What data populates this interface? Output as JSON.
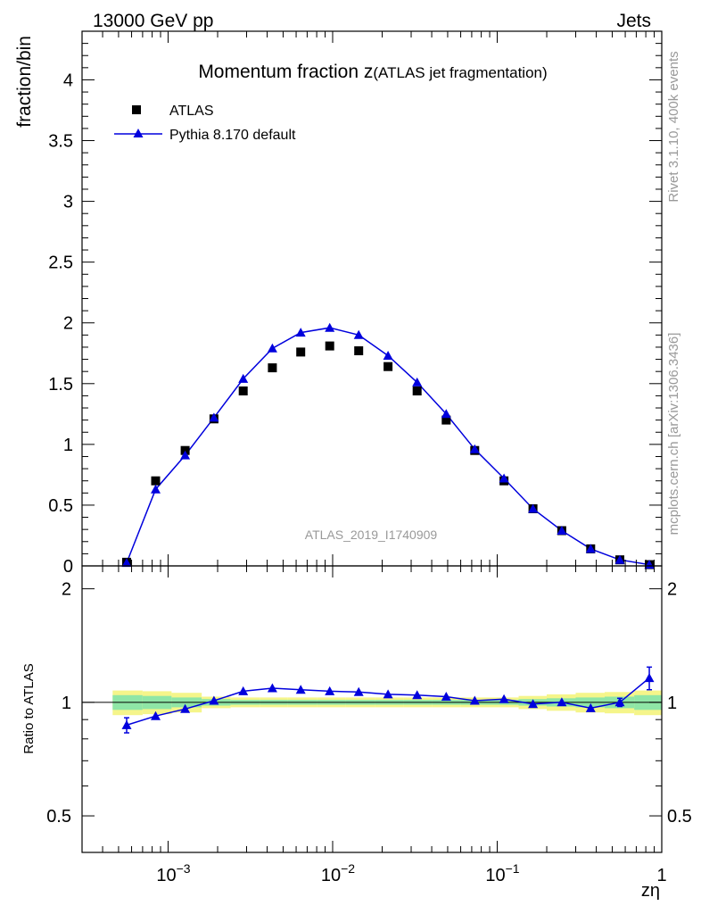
{
  "header": {
    "energy_label": "13000 GeV pp",
    "process_label": "Jets",
    "rivet_label": "Rivet 3.1.10,  400k events",
    "mcplots_label": "mcplots.cern.ch [arXiv:1306.3436]",
    "analysis_label": "ATLAS_2019_I1740909"
  },
  "colors": {
    "mc": "#0000dd",
    "data": "#000000",
    "band_inner": "#8fe6a6",
    "band_outer": "#f5f58a",
    "watermark": "#999999"
  },
  "chart_data": [
    {
      "type": "scatter",
      "title_main": "Momentum fraction z",
      "title_sub": "(ATLAS jet fragmentation)",
      "ylabel": "fraction/bin",
      "xscale": "log",
      "xlim": [
        0.0003,
        1
      ],
      "ylim": [
        0,
        4.4
      ],
      "yticks": [
        0,
        0.5,
        1,
        1.5,
        2,
        2.5,
        3,
        3.5,
        4
      ],
      "ytick_labels": [
        "0",
        "0.5",
        "1",
        "1.5",
        "2",
        "2.5",
        "3",
        "3.5",
        "4"
      ],
      "legend_position": "top-left",
      "series": [
        {
          "name": "ATLAS",
          "marker": "square",
          "x": [
            0.00056,
            0.00084,
            0.00127,
            0.0019,
            0.00286,
            0.0043,
            0.0064,
            0.0096,
            0.0144,
            0.0217,
            0.0326,
            0.049,
            0.073,
            0.11,
            0.165,
            0.247,
            0.37,
            0.556,
            0.84
          ],
          "y": [
            0.03,
            0.7,
            0.95,
            1.21,
            1.44,
            1.63,
            1.76,
            1.81,
            1.77,
            1.64,
            1.44,
            1.2,
            0.95,
            0.7,
            0.47,
            0.29,
            0.14,
            0.05,
            0.01
          ]
        },
        {
          "name": "Pythia 8.170 default",
          "marker": "triangle",
          "x": [
            0.00056,
            0.00084,
            0.00127,
            0.0019,
            0.00286,
            0.0043,
            0.0064,
            0.0096,
            0.0144,
            0.0217,
            0.0326,
            0.049,
            0.073,
            0.11,
            0.165,
            0.247,
            0.37,
            0.556,
            0.84
          ],
          "y": [
            0.025,
            0.63,
            0.91,
            1.22,
            1.54,
            1.79,
            1.92,
            1.96,
            1.9,
            1.73,
            1.51,
            1.25,
            0.96,
            0.72,
            0.47,
            0.29,
            0.14,
            0.05,
            0.01
          ]
        }
      ]
    },
    {
      "type": "line",
      "ylabel": "Ratio to ATLAS",
      "xlabel": "zη",
      "xscale": "log",
      "xlim": [
        0.0003,
        1
      ],
      "ylim": [
        0.4,
        2.3
      ],
      "yticks": [
        0.5,
        1,
        2
      ],
      "ytick_labels": [
        "0.5",
        "1",
        "2"
      ],
      "xticks": [
        0.001,
        0.01,
        0.1,
        1
      ],
      "xtick_labels": [
        {
          "base": "10",
          "exp": "−3"
        },
        {
          "base": "10",
          "exp": "−2"
        },
        {
          "base": "10",
          "exp": "−1"
        },
        {
          "base": "1",
          "exp": ""
        }
      ],
      "band": {
        "edges": [
          0.00046,
          0.0007,
          0.00105,
          0.0016,
          0.0024,
          0.0036,
          0.0053,
          0.008,
          0.012,
          0.018,
          0.027,
          0.04,
          0.06,
          0.09,
          0.135,
          0.2,
          0.3,
          0.45,
          0.68,
          1.0
        ],
        "inner": [
          0.045,
          0.04,
          0.03,
          0.02,
          0.015,
          0.015,
          0.015,
          0.015,
          0.015,
          0.015,
          0.015,
          0.015,
          0.015,
          0.015,
          0.02,
          0.025,
          0.03,
          0.035,
          0.045
        ],
        "outer": [
          0.075,
          0.07,
          0.06,
          0.035,
          0.03,
          0.03,
          0.03,
          0.03,
          0.03,
          0.03,
          0.03,
          0.03,
          0.03,
          0.03,
          0.04,
          0.05,
          0.06,
          0.065,
          0.075
        ]
      },
      "series": [
        {
          "name": "Pythia 8.170 default",
          "x": [
            0.00056,
            0.00084,
            0.00127,
            0.0019,
            0.00286,
            0.0043,
            0.0064,
            0.0096,
            0.0144,
            0.0217,
            0.0326,
            0.049,
            0.073,
            0.11,
            0.165,
            0.247,
            0.37,
            0.556,
            0.84
          ],
          "y": [
            0.87,
            0.92,
            0.96,
            1.01,
            1.07,
            1.09,
            1.08,
            1.07,
            1.065,
            1.05,
            1.045,
            1.035,
            1.01,
            1.02,
            0.99,
            1.0,
            0.965,
            1.0,
            1.16
          ],
          "yerr": [
            0.04,
            0,
            0,
            0,
            0,
            0,
            0,
            0,
            0,
            0,
            0,
            0,
            0,
            0,
            0,
            0,
            0,
            0.025,
            0.08
          ]
        }
      ]
    }
  ]
}
